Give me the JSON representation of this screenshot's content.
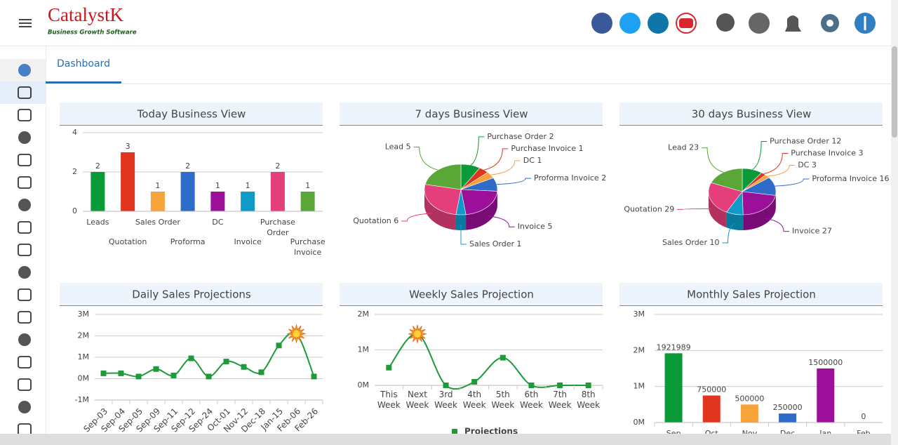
{
  "header": {
    "logo": "CatalystK",
    "tagline": "Business Growth Software"
  },
  "tabs": [
    "Dashboard"
  ],
  "chart_data": [
    {
      "type": "bar",
      "title": "Today Business View",
      "categories": [
        "Leads",
        "Quotation",
        "Sales Order",
        "Proforma",
        "DC",
        "Invoice",
        "Purchase Order",
        "Purchase Invoice"
      ],
      "values": [
        2,
        3,
        1,
        2,
        1,
        1,
        2,
        1
      ],
      "colors": [
        "#0a9a3a",
        "#e0341f",
        "#f7a33a",
        "#2f6bc8",
        "#9b0f99",
        "#0f9ac9",
        "#e43f7a",
        "#5aa637"
      ],
      "ylim": [
        0,
        4
      ],
      "yticks": [
        0,
        2,
        4
      ],
      "grid": true
    },
    {
      "type": "pie",
      "title": "7 days Business View",
      "categories": [
        "Purchase Order",
        "Purchase Invoice",
        "DC",
        "Proforma Invoice",
        "Invoice",
        "Sales Order",
        "Quotation",
        "Lead"
      ],
      "values": [
        2,
        1,
        1,
        2,
        5,
        1,
        6,
        5
      ],
      "colors": [
        "#0a9a3a",
        "#e0341f",
        "#f7a33a",
        "#2f6bc8",
        "#9b0f99",
        "#0f9ac9",
        "#e43f7a",
        "#5aa637"
      ]
    },
    {
      "type": "pie",
      "title": "30 days Business View",
      "categories": [
        "Purchase Order",
        "Purchase Invoice",
        "DC",
        "Proforma Invoice",
        "Invoice",
        "Sales Order",
        "Quotation",
        "Lead"
      ],
      "values": [
        12,
        3,
        3,
        16,
        27,
        10,
        29,
        23
      ],
      "colors": [
        "#0a9a3a",
        "#e0341f",
        "#f7a33a",
        "#2f6bc8",
        "#9b0f99",
        "#0f9ac9",
        "#e43f7a",
        "#5aa637"
      ]
    },
    {
      "type": "line",
      "title": "Daily Sales Projections",
      "categories": [
        "Sep-03",
        "Sep-04",
        "Sep-05",
        "Sep-09",
        "Sep-11",
        "Sep-12",
        "Sep-24",
        "Oct-01",
        "Nov-12",
        "Dec-18",
        "Jan-15",
        "Feb-06",
        "Feb-26"
      ],
      "values": [
        250000,
        250000,
        100000,
        450000,
        150000,
        950000,
        100000,
        800000,
        550000,
        300000,
        1550000,
        2100000,
        100000
      ],
      "color": "#1e9a3a",
      "ylim": [
        -1000000,
        3000000
      ],
      "yticks": [
        {
          "value": -1000000,
          "label": "-1M"
        },
        {
          "value": 0,
          "label": "0M"
        },
        {
          "value": 1000000,
          "label": "1M"
        },
        {
          "value": 2000000,
          "label": "2M"
        },
        {
          "value": 3000000,
          "label": "3M"
        }
      ],
      "grid": true
    },
    {
      "type": "line",
      "title": "Weekly Sales Projection",
      "categories": [
        "This Week",
        "Next Week",
        "3rd Week",
        "4th Week",
        "5th Week",
        "6th Week",
        "7th Week",
        "8th Week"
      ],
      "series": [
        {
          "name": "Projections",
          "color": "#1e9a3a",
          "values": [
            500000,
            1450000,
            0,
            100000,
            780000,
            0,
            0,
            0
          ]
        }
      ],
      "ylim": [
        0,
        2000000
      ],
      "yticks": [
        {
          "value": 0,
          "label": "0M"
        },
        {
          "value": 1000000,
          "label": "1M"
        },
        {
          "value": 2000000,
          "label": "2M"
        }
      ],
      "grid": true
    },
    {
      "type": "bar",
      "title": "Monthly Sales Projection",
      "categories": [
        "Sep",
        "Oct",
        "Nov",
        "Dec",
        "Jan",
        "Feb"
      ],
      "values": [
        1921989,
        750000,
        500000,
        250000,
        1500000,
        0
      ],
      "colors": [
        "#0a9a3a",
        "#e0341f",
        "#f7a33a",
        "#2f6bc8",
        "#9b0f99",
        "#0f9ac9"
      ],
      "ylim": [
        0,
        3000000
      ],
      "yticks": [
        {
          "value": 0,
          "label": "0M"
        },
        {
          "value": 1000000,
          "label": "1M"
        },
        {
          "value": 2000000,
          "label": "2M"
        },
        {
          "value": 3000000,
          "label": "3M"
        }
      ],
      "grid": true
    }
  ]
}
